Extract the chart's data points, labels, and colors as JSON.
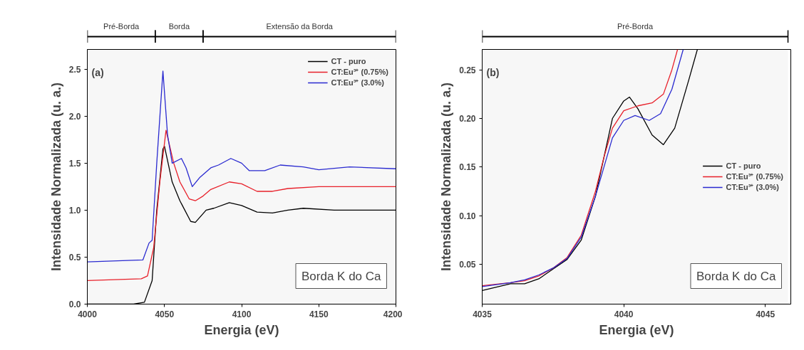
{
  "chart_data": [
    {
      "type": "line",
      "xlabel": "Energia (eV)",
      "ylabel": "Intensidade Normalizada (u. a.)",
      "xlim": [
        4000,
        4200
      ],
      "ylim": [
        0,
        2.71
      ],
      "xticks": [
        4000,
        4050,
        4100,
        4150,
        4200
      ],
      "yticks": [
        {
          "value": 0,
          "label": "0.0"
        },
        0.5,
        {
          "value": 1,
          "label": "1.0"
        },
        1.5,
        {
          "value": 2,
          "label": "2.0"
        },
        2.5
      ],
      "grid": false,
      "legend": "top right",
      "line_style": "solid",
      "marker": "none",
      "annotations": [
        "(a)",
        "Borda K do Ca"
      ],
      "bands": [
        {
          "axis": "x",
          "from": 4000,
          "to": 4044,
          "label": "Pré-Borda"
        },
        {
          "axis": "x",
          "from": 4044,
          "to": 4075,
          "label": "Borda"
        },
        {
          "axis": "x",
          "from": 4075,
          "to": 4200,
          "label": "Extensão da Borda"
        }
      ],
      "series": [
        {
          "name": "CT - puro",
          "color": "#000000",
          "x": [
            4000,
            4030,
            4037,
            4042,
            4045,
            4049,
            4050,
            4055,
            4060,
            4067,
            4070,
            4077,
            4082,
            4092,
            4100,
            4110,
            4120,
            4130,
            4140,
            4160,
            4200
          ],
          "values": [
            0,
            0,
            0.02,
            0.25,
            1.0,
            1.65,
            1.68,
            1.3,
            1.1,
            0.88,
            0.87,
            1.0,
            1.02,
            1.08,
            1.05,
            0.98,
            0.97,
            1.0,
            1.02,
            1.0,
            1.0
          ]
        },
        {
          "name": "CT:Eu³⁺ (0.75%)",
          "color": "#e8202a",
          "x": [
            4000,
            4035,
            4039,
            4043,
            4047,
            4051,
            4056,
            4060,
            4066,
            4070,
            4075,
            4080,
            4092,
            4100,
            4110,
            4120,
            4130,
            4150,
            4200
          ],
          "values": [
            0.25,
            0.27,
            0.3,
            0.6,
            1.3,
            1.85,
            1.5,
            1.3,
            1.12,
            1.1,
            1.15,
            1.22,
            1.3,
            1.28,
            1.2,
            1.2,
            1.23,
            1.25,
            1.25
          ]
        },
        {
          "name": "CT:Eu³⁺ (3.0%)",
          "color": "#2a2ad0",
          "x": [
            4000,
            4036,
            4040,
            4042,
            4045,
            4049,
            4052,
            4055,
            4061,
            4064,
            4068,
            4073,
            4080,
            4085,
            4093,
            4100,
            4105,
            4115,
            4125,
            4140,
            4150,
            4170,
            4200
          ],
          "values": [
            0.45,
            0.47,
            0.65,
            0.68,
            1.5,
            2.48,
            1.8,
            1.5,
            1.55,
            1.45,
            1.25,
            1.35,
            1.45,
            1.48,
            1.55,
            1.5,
            1.42,
            1.42,
            1.48,
            1.46,
            1.43,
            1.46,
            1.44
          ]
        }
      ]
    },
    {
      "type": "line",
      "xlabel": "Energia (eV)",
      "ylabel": "Intensidade Normalizada (u. a.)",
      "xlim": [
        4035,
        4045.9
      ],
      "ylim": [
        0.009,
        0.271
      ],
      "xticks": [
        4035,
        4040,
        4045
      ],
      "yticks": [
        0.05,
        {
          "value": 0.1,
          "label": "0.10"
        },
        0.15,
        {
          "value": 0.2,
          "label": "0.20"
        },
        0.25
      ],
      "grid": false,
      "legend": "right",
      "line_style": "solid",
      "marker": "none",
      "annotations": [
        "(b)",
        "Borda K do Ca"
      ],
      "bands": [
        {
          "axis": "x",
          "from": 4035,
          "to": 4045.8,
          "label": "Pré-Borda"
        }
      ],
      "series": [
        {
          "name": "CT - puro",
          "color": "#000000",
          "x": [
            4035,
            4036,
            4036.5,
            4037,
            4037.5,
            4038,
            4038.5,
            4039,
            4039.3,
            4039.6,
            4040,
            4040.2,
            4040.5,
            4041,
            4041.4,
            4041.8,
            4042.3,
            4042.6
          ],
          "values": [
            0.023,
            0.03,
            0.03,
            0.035,
            0.045,
            0.055,
            0.075,
            0.12,
            0.16,
            0.2,
            0.218,
            0.222,
            0.21,
            0.183,
            0.173,
            0.19,
            0.24,
            0.271
          ]
        },
        {
          "name": "CT:Eu³⁺ (0.75%)",
          "color": "#e8202a",
          "x": [
            4035,
            4036,
            4036.5,
            4037,
            4037.5,
            4038,
            4038.5,
            4039,
            4039.3,
            4039.6,
            4040,
            4040.5,
            4041,
            4041.4,
            4041.7,
            4041.9
          ],
          "values": [
            0.028,
            0.031,
            0.033,
            0.038,
            0.046,
            0.057,
            0.08,
            0.125,
            0.16,
            0.19,
            0.208,
            0.213,
            0.216,
            0.225,
            0.25,
            0.271
          ]
        },
        {
          "name": "CT:Eu³⁺ (3.0%)",
          "color": "#2a2ad0",
          "x": [
            4035,
            4036,
            4036.5,
            4037,
            4037.5,
            4038,
            4038.5,
            4039,
            4039.3,
            4039.6,
            4040,
            4040.4,
            4040.9,
            4041.3,
            4041.7,
            4042.1
          ],
          "values": [
            0.027,
            0.031,
            0.034,
            0.039,
            0.046,
            0.056,
            0.078,
            0.12,
            0.15,
            0.18,
            0.198,
            0.203,
            0.198,
            0.205,
            0.23,
            0.271
          ]
        }
      ]
    }
  ]
}
